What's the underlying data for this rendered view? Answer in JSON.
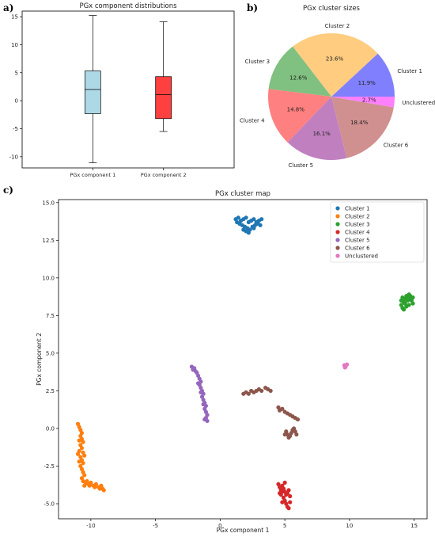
{
  "panels": {
    "a": "a)",
    "b": "b)",
    "c": "c)"
  },
  "chart_data": [
    {
      "type": "box",
      "title": "PGx component distributions",
      "categories": [
        "PGx component 1",
        "PGx component 2"
      ],
      "ylim": [
        -12,
        16
      ],
      "yticks": [
        -10,
        -5,
        0,
        5,
        10,
        15
      ],
      "boxes": [
        {
          "min": -11.1,
          "q1": -2.3,
          "median": 2.0,
          "q3": 5.3,
          "max": 15.2,
          "color": "#add8e6"
        },
        {
          "min": -5.5,
          "q1": -3.2,
          "median": 1.1,
          "q3": 4.3,
          "max": 14.1,
          "color": "#ff4040"
        }
      ],
      "grid": false
    },
    {
      "type": "pie",
      "title": "PGx cluster sizes",
      "slices": [
        {
          "label": "Cluster 1",
          "value": 11.9,
          "pct": "11.9%",
          "color": "#8080ff"
        },
        {
          "label": "Cluster 2",
          "value": 23.6,
          "pct": "23.6%",
          "color": "#ffcc80"
        },
        {
          "label": "Cluster 3",
          "value": 12.6,
          "pct": "12.6%",
          "color": "#80c080"
        },
        {
          "label": "Cluster 4",
          "value": 14.8,
          "pct": "14.8%",
          "color": "#ff8080"
        },
        {
          "label": "Cluster 5",
          "value": 16.1,
          "pct": "16.1%",
          "color": "#c080c0"
        },
        {
          "label": "Cluster 6",
          "value": 18.4,
          "pct": "18.4%",
          "color": "#d09090"
        },
        {
          "label": "Unclustered",
          "value": 2.7,
          "pct": "2.7%",
          "color": "#ff80ff"
        }
      ]
    },
    {
      "type": "scatter",
      "title": "PGx cluster map",
      "xlabel": "PGx component 1",
      "ylabel": "PGx component 2",
      "xlim": [
        -12.5,
        16
      ],
      "ylim": [
        -6,
        15.2
      ],
      "xticks": [
        -10,
        -5,
        0,
        5,
        10,
        15
      ],
      "yticks": [
        -5.0,
        -2.5,
        0.0,
        2.5,
        5.0,
        7.5,
        10.0,
        12.5,
        15.0
      ],
      "ytick_labels": [
        "-5.0",
        "-2.5",
        "0.0",
        "2.5",
        "5.0",
        "7.5",
        "10.0",
        "12.5",
        "15.0"
      ],
      "legend_position": "top-right",
      "series": [
        {
          "name": "Cluster 1",
          "color": "#1f77b4",
          "points": [
            [
              1.2,
              13.9
            ],
            [
              1.4,
              14.0
            ],
            [
              1.6,
              13.8
            ],
            [
              1.8,
              13.9
            ],
            [
              2.0,
              14.0
            ],
            [
              2.2,
              13.7
            ],
            [
              2.4,
              13.8
            ],
            [
              2.6,
              13.9
            ],
            [
              2.8,
              13.7
            ],
            [
              3.0,
              13.8
            ],
            [
              3.2,
              13.9
            ],
            [
              1.5,
              13.6
            ],
            [
              1.7,
              13.5
            ],
            [
              1.9,
              13.4
            ],
            [
              2.1,
              13.3
            ],
            [
              2.3,
              13.2
            ],
            [
              2.5,
              13.4
            ],
            [
              2.7,
              13.5
            ],
            [
              2.9,
              13.6
            ],
            [
              3.1,
              13.5
            ],
            [
              2.0,
              13.1
            ],
            [
              2.2,
              13.0
            ],
            [
              1.3,
              13.7
            ],
            [
              2.6,
              13.3
            ],
            [
              1.8,
              13.2
            ]
          ]
        },
        {
          "name": "Cluster 2",
          "color": "#ff7f0e",
          "points": [
            [
              -11.0,
              0.3
            ],
            [
              -10.9,
              0.1
            ],
            [
              -10.8,
              -0.1
            ],
            [
              -10.7,
              -0.3
            ],
            [
              -10.8,
              -0.5
            ],
            [
              -10.7,
              -0.7
            ],
            [
              -10.6,
              -0.9
            ],
            [
              -10.8,
              -1.1
            ],
            [
              -10.7,
              -1.3
            ],
            [
              -10.9,
              -1.5
            ],
            [
              -11.0,
              -1.7
            ],
            [
              -10.8,
              -1.9
            ],
            [
              -10.6,
              -1.6
            ],
            [
              -10.5,
              -1.8
            ],
            [
              -10.7,
              -2.1
            ],
            [
              -10.6,
              -2.3
            ],
            [
              -10.8,
              -2.5
            ],
            [
              -10.7,
              -2.7
            ],
            [
              -10.6,
              -2.9
            ],
            [
              -10.5,
              -3.1
            ],
            [
              -10.7,
              -3.3
            ],
            [
              -10.6,
              -3.5
            ],
            [
              -10.4,
              -3.6
            ],
            [
              -10.2,
              -3.7
            ],
            [
              -10.0,
              -3.6
            ],
            [
              -9.8,
              -3.8
            ],
            [
              -9.6,
              -3.7
            ],
            [
              -9.4,
              -3.9
            ],
            [
              -9.2,
              -3.8
            ],
            [
              -9.1,
              -4.0
            ],
            [
              -9.0,
              -4.1
            ],
            [
              -9.3,
              -4.0
            ],
            [
              -9.7,
              -3.9
            ],
            [
              -10.1,
              -3.8
            ],
            [
              -10.5,
              -3.8
            ],
            [
              -10.3,
              -3.5
            ],
            [
              -10.9,
              -0.8
            ],
            [
              -10.9,
              -2.2
            ]
          ]
        },
        {
          "name": "Cluster 3",
          "color": "#2ca02c",
          "points": [
            [
              14.0,
              8.2
            ],
            [
              14.1,
              8.0
            ],
            [
              14.2,
              8.4
            ],
            [
              14.3,
              8.6
            ],
            [
              14.4,
              8.8
            ],
            [
              14.5,
              8.7
            ],
            [
              14.6,
              8.9
            ],
            [
              14.7,
              8.6
            ],
            [
              14.8,
              8.5
            ],
            [
              14.9,
              8.3
            ],
            [
              14.6,
              8.2
            ],
            [
              14.4,
              8.1
            ],
            [
              14.2,
              7.9
            ],
            [
              14.0,
              8.5
            ],
            [
              14.3,
              8.3
            ],
            [
              14.7,
              8.8
            ],
            [
              14.1,
              8.7
            ],
            [
              14.5,
              8.5
            ],
            [
              14.9,
              8.7
            ]
          ]
        },
        {
          "name": "Cluster 4",
          "color": "#d62728",
          "points": [
            [
              4.5,
              -3.7
            ],
            [
              4.6,
              -3.9
            ],
            [
              4.7,
              -4.1
            ],
            [
              4.8,
              -3.8
            ],
            [
              4.9,
              -4.0
            ],
            [
              5.0,
              -4.2
            ],
            [
              5.1,
              -4.4
            ],
            [
              5.2,
              -4.3
            ],
            [
              5.3,
              -4.1
            ],
            [
              5.4,
              -4.5
            ],
            [
              4.7,
              -4.4
            ],
            [
              4.9,
              -4.6
            ],
            [
              5.0,
              -4.8
            ],
            [
              5.1,
              -5.0
            ],
            [
              5.2,
              -5.2
            ],
            [
              5.3,
              -5.3
            ],
            [
              4.8,
              -4.9
            ],
            [
              4.6,
              -4.3
            ],
            [
              5.4,
              -4.9
            ],
            [
              5.0,
              -3.6
            ],
            [
              4.8,
              -4.2
            ]
          ]
        },
        {
          "name": "Cluster 5",
          "color": "#9467bd",
          "points": [
            [
              -2.2,
              4.1
            ],
            [
              -2.1,
              3.9
            ],
            [
              -2.0,
              4.0
            ],
            [
              -1.9,
              3.8
            ],
            [
              -1.8,
              3.7
            ],
            [
              -1.7,
              3.5
            ],
            [
              -1.6,
              3.3
            ],
            [
              -1.5,
              3.1
            ],
            [
              -1.6,
              2.9
            ],
            [
              -1.5,
              2.7
            ],
            [
              -1.4,
              2.5
            ],
            [
              -1.3,
              2.3
            ],
            [
              -1.4,
              2.1
            ],
            [
              -1.3,
              1.9
            ],
            [
              -1.2,
              1.7
            ],
            [
              -1.1,
              1.5
            ],
            [
              -1.2,
              1.3
            ],
            [
              -1.1,
              1.1
            ],
            [
              -1.0,
              0.9
            ],
            [
              -1.1,
              0.7
            ],
            [
              -1.0,
              0.5
            ],
            [
              -1.2,
              0.6
            ],
            [
              -1.7,
              3.0
            ],
            [
              -1.5,
              2.4
            ],
            [
              -1.3,
              1.6
            ]
          ]
        },
        {
          "name": "Cluster 6",
          "color": "#8c564b",
          "points": [
            [
              1.8,
              2.3
            ],
            [
              2.0,
              2.4
            ],
            [
              2.2,
              2.3
            ],
            [
              2.4,
              2.5
            ],
            [
              2.6,
              2.4
            ],
            [
              2.8,
              2.5
            ],
            [
              3.0,
              2.6
            ],
            [
              3.2,
              2.5
            ],
            [
              3.5,
              2.7
            ],
            [
              3.7,
              2.6
            ],
            [
              3.9,
              2.5
            ],
            [
              4.5,
              1.4
            ],
            [
              4.6,
              1.2
            ],
            [
              4.8,
              1.3
            ],
            [
              5.0,
              1.1
            ],
            [
              5.2,
              1.0
            ],
            [
              5.4,
              0.9
            ],
            [
              5.6,
              0.8
            ],
            [
              5.8,
              0.7
            ],
            [
              6.0,
              0.6
            ],
            [
              5.1,
              -0.2
            ],
            [
              5.2,
              -0.4
            ],
            [
              5.3,
              -0.6
            ],
            [
              5.4,
              -0.5
            ],
            [
              5.5,
              -0.3
            ],
            [
              5.6,
              -0.1
            ],
            [
              5.7,
              0.0
            ],
            [
              5.8,
              -0.2
            ],
            [
              5.9,
              -0.4
            ],
            [
              5.0,
              -0.4
            ]
          ]
        },
        {
          "name": "Unclustered",
          "color": "#e377c2",
          "points": [
            [
              9.6,
              4.2
            ],
            [
              9.7,
              4.1
            ],
            [
              9.8,
              4.25
            ],
            [
              9.65,
              4.05
            ]
          ]
        }
      ]
    }
  ]
}
